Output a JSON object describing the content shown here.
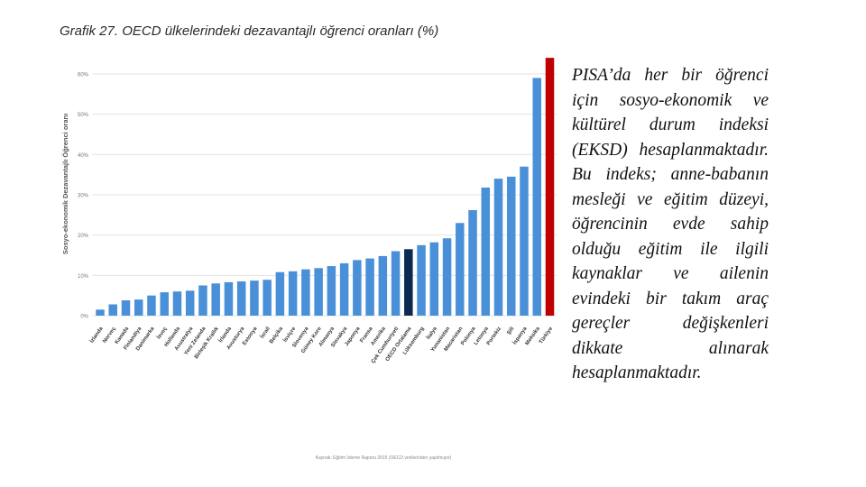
{
  "chart_data": {
    "type": "bar",
    "title": "Grafik 27. OECD ülkelerindeki dezavantajlı öğrenci oranları (%)",
    "xlabel": "",
    "ylabel": "Sosyo-ekonomik Dezavantajlı Öğrenci oranı",
    "ylim": [
      0,
      60
    ],
    "y_ticks": [
      0,
      10,
      20,
      30,
      40,
      50,
      60
    ],
    "y_tick_labels": [
      "0%",
      "10%",
      "20%",
      "30%",
      "40%",
      "50%",
      "60%"
    ],
    "grid": true,
    "categories": [
      "İzlanda",
      "Norveç",
      "Kanada",
      "Finlandiya",
      "Danimarka",
      "İsveç",
      "Hollanda",
      "Avustralya",
      "Yeni Zelanda",
      "Birleşik Krallık",
      "İrlanda",
      "Avusturya",
      "Estonya",
      "İsrail",
      "Belçika",
      "İsviçre",
      "Slovenya",
      "Güney Kore",
      "Almanya",
      "Slovakya",
      "Japonya",
      "Fransa",
      "Amerika",
      "Çek Cumhuriyeti",
      "OECD Ortalama",
      "Lüksemburg",
      "İtalya",
      "Yunanistan",
      "Macaristan",
      "Polonya",
      "Letonya",
      "Portekiz",
      "Şili",
      "İspanya",
      "Meksika",
      "Türkiye"
    ],
    "values": [
      1.5,
      2.8,
      3.8,
      4.0,
      5.0,
      5.8,
      6.0,
      6.2,
      7.5,
      8.0,
      8.3,
      8.5,
      8.7,
      8.9,
      10.8,
      11.0,
      11.5,
      11.8,
      12.3,
      13.0,
      13.8,
      14.2,
      14.8,
      16.0,
      16.5,
      17.5,
      18.2,
      19.2,
      23.0,
      26.2,
      31.8,
      34.0,
      34.5,
      37.0,
      59.0,
      64.0
    ],
    "colors": {
      "default": "#4a90d9",
      "OECD Ortalama": "#0b2a52",
      "Türkiye": "#c00000"
    }
  },
  "side_text": "PISA’da her bir öğrenci için sosyo-ekonomik ve kültürel durum indeksi (EKSD) hesaplanmaktadır. Bu indeks; anne-babanın mesleği ve eğitim düzeyi, öğrencinin evde sahip olduğu eğitim ile ilgili kaynaklar ve ailenin evindeki bir takım araç gereçler değişkenleri dikkate alınarak hesaplanmaktadır.",
  "footnote": "Kaynak: Eğitim İzleme Raporu 2015 (OECD verilerinden yapılmıştır)"
}
